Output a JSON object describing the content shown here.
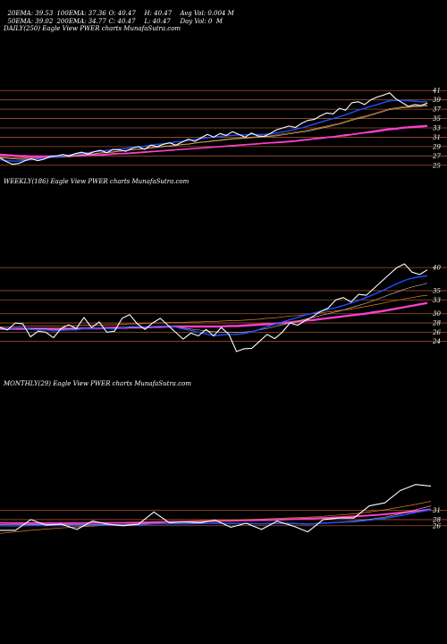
{
  "header": {
    "row1": [
      "20EMA: 39.53",
      "100EMA: 37.36",
      "O: 40.47",
      "H: 40.47",
      "Avg Vol: 0.004 M"
    ],
    "row2": [
      "50EMA: 39.02",
      "200EMA: 34.77",
      "C: 40.47",
      "L: 40.47",
      "Day Vol: 0  M"
    ]
  },
  "colors": {
    "background": "#000000",
    "gridline": "#a0522d",
    "price": "#ffffff",
    "ema_short": "#1f4fff",
    "ema_long": "#ff3fd0",
    "ema_mid": "#c8b090",
    "ema_orange": "#e08020"
  },
  "chart_data": [
    {
      "type": "line",
      "label": "DAILY(250) Eagle  View  PWER charts MunafaSutra.com",
      "ylim": [
        24,
        42
      ],
      "yticks": [
        41,
        39,
        37,
        35,
        33,
        31,
        29,
        27,
        25
      ],
      "series": [
        {
          "role": "price",
          "values": [
            26.6,
            25.8,
            25.2,
            25.4,
            26.0,
            26.4,
            26.0,
            26.3,
            26.9,
            27.0,
            27.3,
            27.0,
            27.5,
            27.8,
            27.4,
            27.9,
            28.2,
            27.7,
            28.4,
            28.3,
            28.0,
            28.6,
            29.0,
            28.4,
            29.3,
            29.0,
            29.5,
            29.8,
            29.3,
            30.0,
            30.6,
            30.1,
            30.9,
            31.6,
            31.0,
            31.8,
            31.4,
            32.2,
            31.6,
            31.0,
            31.9,
            31.3,
            31.2,
            31.8,
            32.6,
            33.0,
            33.4,
            33.1,
            34.0,
            34.6,
            34.8,
            35.6,
            36.2,
            36.0,
            37.2,
            36.8,
            38.4,
            38.6,
            38.0,
            39.0,
            39.6,
            40.0,
            40.5,
            39.2,
            38.4,
            37.6,
            38.0,
            37.8,
            38.3
          ]
        },
        {
          "role": "ema_short",
          "values": [
            26.2,
            26.0,
            25.9,
            25.9,
            26.1,
            26.2,
            26.3,
            26.5,
            26.7,
            26.8,
            27.0,
            27.2,
            27.4,
            27.5,
            27.7,
            27.9,
            28.0,
            28.2,
            28.3,
            28.5,
            28.6,
            28.8,
            29.0,
            29.1,
            29.3,
            29.5,
            29.6,
            29.8,
            30.0,
            30.1,
            30.3,
            30.5,
            30.7,
            30.9,
            31.0,
            31.2,
            31.3,
            31.4,
            31.5,
            31.5,
            31.6,
            31.6,
            31.6,
            31.7,
            31.9,
            32.1,
            32.4,
            32.7,
            33.0,
            33.4,
            33.8,
            34.2,
            34.6,
            35.0,
            35.4,
            35.8,
            36.3,
            36.8,
            37.2,
            37.6,
            38.0,
            38.4,
            38.8,
            38.9,
            38.9,
            38.8,
            38.7,
            38.6,
            38.6
          ]
        },
        {
          "role": "ema_mid",
          "values": [
            26.6,
            26.5,
            26.4,
            26.3,
            26.3,
            26.3,
            26.4,
            26.5,
            26.6,
            26.7,
            26.8,
            26.9,
            27.0,
            27.2,
            27.3,
            27.4,
            27.6,
            27.7,
            27.8,
            28.0,
            28.1,
            28.3,
            28.4,
            28.5,
            28.7,
            28.8,
            29.0,
            29.1,
            29.2,
            29.4,
            29.5,
            29.7,
            29.9,
            30.0,
            30.2,
            30.3,
            30.5,
            30.6,
            30.7,
            30.8,
            30.9,
            31.0,
            31.1,
            31.2,
            31.3,
            31.5,
            31.7,
            31.9,
            32.1,
            32.3,
            32.6,
            32.9,
            33.2,
            33.5,
            33.8,
            34.2,
            34.6,
            35.0,
            35.3,
            35.7,
            36.1,
            36.5,
            36.9,
            37.1,
            37.3,
            37.4,
            37.5,
            37.6,
            37.7
          ]
        },
        {
          "role": "ema_orange",
          "values": [
            26.8,
            26.7,
            26.6,
            26.5,
            26.5,
            26.5,
            26.5,
            26.6,
            26.7,
            26.8,
            26.9,
            27.0,
            27.1,
            27.3,
            27.4,
            27.5,
            27.7,
            27.8,
            27.9,
            28.1,
            28.2,
            28.3,
            28.5,
            28.6,
            28.8,
            28.9,
            29.1,
            29.2,
            29.3,
            29.5,
            29.6,
            29.8,
            30.0,
            30.1,
            30.3,
            30.4,
            30.6,
            30.7,
            30.8,
            30.9,
            31.0,
            31.1,
            31.2,
            31.3,
            31.5,
            31.7,
            31.9,
            32.1,
            32.3,
            32.5,
            32.8,
            33.1,
            33.4,
            33.7,
            34.0,
            34.4,
            34.8,
            35.2,
            35.5,
            35.9,
            36.3,
            36.7,
            37.1,
            37.3,
            37.5,
            37.6,
            37.7,
            37.8,
            37.9
          ]
        },
        {
          "role": "ema_long",
          "values": [
            27.2,
            27.1,
            27.0,
            26.9,
            26.8,
            26.8,
            26.8,
            26.8,
            26.8,
            26.8,
            26.9,
            26.9,
            27.0,
            27.0,
            27.1,
            27.2,
            27.2,
            27.3,
            27.4,
            27.5,
            27.5,
            27.6,
            27.7,
            27.8,
            27.9,
            28.0,
            28.1,
            28.2,
            28.3,
            28.4,
            28.5,
            28.6,
            28.7,
            28.8,
            28.9,
            29.0,
            29.1,
            29.2,
            29.3,
            29.4,
            29.5,
            29.6,
            29.7,
            29.8,
            29.9,
            30.0,
            30.1,
            30.2,
            30.4,
            30.5,
            30.7,
            30.8,
            31.0,
            31.1,
            31.3,
            31.5,
            31.6,
            31.8,
            32.0,
            32.2,
            32.4,
            32.6,
            32.8,
            32.9,
            33.1,
            33.2,
            33.3,
            33.4,
            33.5
          ]
        },
        {
          "role": "ema_long2",
          "values": [
            27.4,
            27.3,
            27.2,
            27.1,
            27.1,
            27.0,
            27.0,
            27.0,
            27.0,
            27.0,
            27.0,
            27.1,
            27.1,
            27.2,
            27.2,
            27.3,
            27.3,
            27.4,
            27.5,
            27.5,
            27.6,
            27.7,
            27.8,
            27.9,
            28.0,
            28.0,
            28.1,
            28.2,
            28.3,
            28.4,
            28.5,
            28.6,
            28.7,
            28.8,
            28.9,
            29.0,
            29.1,
            29.2,
            29.3,
            29.4,
            29.5,
            29.6,
            29.7,
            29.8,
            29.8,
            29.9,
            30.0,
            30.1,
            30.3,
            30.4,
            30.6,
            30.7,
            30.9,
            31.0,
            31.2,
            31.3,
            31.5,
            31.7,
            31.9,
            32.0,
            32.2,
            32.4,
            32.6,
            32.7,
            32.9,
            33.0,
            33.1,
            33.2,
            33.3
          ]
        }
      ]
    },
    {
      "type": "line",
      "label": "WEEKLY(186) Eagle  View  PWER charts MunafaSutra.com",
      "ylim": [
        22,
        41
      ],
      "yticks": [
        40,
        35,
        33,
        30,
        28,
        26,
        24
      ],
      "series": [
        {
          "role": "price",
          "values": [
            27.0,
            26.5,
            28.0,
            27.8,
            25.0,
            26.2,
            26.0,
            24.8,
            26.8,
            27.6,
            26.8,
            29.2,
            27.0,
            28.2,
            26.0,
            26.2,
            29.0,
            29.8,
            27.8,
            26.6,
            28.0,
            29.0,
            27.5,
            26.0,
            24.5,
            25.8,
            25.2,
            26.6,
            25.2,
            27.0,
            25.5,
            21.8,
            22.4,
            22.5,
            24.0,
            25.5,
            24.6,
            26.0,
            28.0,
            27.5,
            28.5,
            29.4,
            30.5,
            31.2,
            33.0,
            33.5,
            32.5,
            34.2,
            34.0,
            35.5,
            37.0,
            38.5,
            40.0,
            40.8,
            39.0,
            38.5,
            39.5
          ]
        },
        {
          "role": "ema_short",
          "values": [
            27.0,
            26.8,
            26.9,
            27.0,
            26.6,
            26.5,
            26.5,
            26.3,
            26.4,
            26.5,
            26.5,
            26.8,
            26.8,
            26.9,
            26.8,
            26.7,
            26.9,
            27.2,
            27.2,
            27.1,
            27.2,
            27.3,
            27.3,
            27.1,
            26.7,
            26.4,
            26.0,
            25.6,
            25.2,
            25.4,
            25.5,
            25.5,
            25.7,
            26.1,
            26.6,
            27.2,
            27.7,
            28.2,
            28.7,
            29.2,
            29.7,
            30.1,
            30.5,
            30.9,
            31.3,
            31.8,
            32.3,
            32.9,
            33.5,
            34.2,
            34.9,
            35.7,
            36.5,
            37.2,
            37.7,
            38.0,
            38.2
          ]
        },
        {
          "role": "ema_mid",
          "values": [
            26.9,
            26.8,
            26.8,
            26.9,
            26.8,
            26.7,
            26.7,
            26.6,
            26.6,
            26.7,
            26.7,
            26.8,
            26.8,
            26.8,
            26.8,
            26.8,
            26.9,
            27.0,
            27.0,
            27.0,
            27.1,
            27.2,
            27.2,
            27.1,
            26.9,
            26.7,
            26.5,
            26.3,
            26.1,
            26.0,
            26.0,
            25.9,
            26.0,
            26.2,
            26.5,
            26.8,
            27.2,
            27.6,
            28.0,
            28.4,
            28.8,
            29.2,
            29.6,
            30.0,
            30.4,
            30.8,
            31.3,
            31.8,
            32.3,
            32.9,
            33.5,
            34.1,
            34.7,
            35.3,
            35.8,
            36.2,
            36.6
          ]
        },
        {
          "role": "ema_orange",
          "values": [
            27.2,
            27.2,
            27.2,
            27.3,
            27.3,
            27.3,
            27.3,
            27.3,
            27.3,
            27.4,
            27.4,
            27.5,
            27.5,
            27.5,
            27.6,
            27.6,
            27.7,
            27.8,
            27.8,
            27.9,
            28.0,
            28.0,
            28.1,
            28.1,
            28.1,
            28.2,
            28.2,
            28.3,
            28.3,
            28.4,
            28.5,
            28.5,
            28.6,
            28.7,
            28.8,
            29.0,
            29.1,
            29.3,
            29.5,
            29.6,
            29.8,
            30.0,
            30.2,
            30.4,
            30.6,
            30.8,
            31.0,
            31.3,
            31.6,
            31.9,
            32.2,
            32.6,
            32.9,
            33.2,
            33.5,
            33.8,
            34.0
          ]
        },
        {
          "role": "ema_long",
          "values": [
            26.8,
            26.8,
            26.8,
            26.8,
            26.8,
            26.8,
            26.8,
            26.8,
            26.8,
            26.8,
            26.8,
            26.9,
            26.9,
            26.9,
            27.0,
            27.0,
            27.0,
            27.1,
            27.1,
            27.1,
            27.2,
            27.2,
            27.3,
            27.3,
            27.3,
            27.3,
            27.3,
            27.3,
            27.3,
            27.3,
            27.4,
            27.4,
            27.5,
            27.6,
            27.7,
            27.8,
            27.9,
            28.1,
            28.2,
            28.4,
            28.6,
            28.7,
            28.9,
            29.1,
            29.3,
            29.5,
            29.7,
            29.9,
            30.1,
            30.4,
            30.6,
            30.9,
            31.2,
            31.5,
            31.8,
            32.1,
            32.4
          ]
        },
        {
          "role": "ema_long2",
          "values": [
            26.6,
            26.6,
            26.6,
            26.6,
            26.6,
            26.6,
            26.6,
            26.6,
            26.6,
            26.6,
            26.6,
            26.7,
            26.7,
            26.7,
            26.8,
            26.8,
            26.8,
            26.9,
            26.9,
            26.9,
            27.0,
            27.0,
            27.1,
            27.1,
            27.1,
            27.1,
            27.1,
            27.1,
            27.1,
            27.1,
            27.2,
            27.2,
            27.3,
            27.4,
            27.5,
            27.6,
            27.7,
            27.9,
            28.0,
            28.2,
            28.4,
            28.5,
            28.7,
            28.9,
            29.1,
            29.3,
            29.5,
            29.7,
            29.9,
            30.2,
            30.4,
            30.7,
            31.0,
            31.3,
            31.6,
            31.9,
            32.2
          ]
        }
      ]
    },
    {
      "type": "line",
      "label": "MONTHLY(29) Eagle  View  PWER charts MunafaSutra.com",
      "ylim": [
        23,
        40
      ],
      "yticks": [
        31,
        28,
        26
      ],
      "series": [
        {
          "role": "price",
          "values": [
            24.5,
            24.5,
            28.0,
            26.2,
            26.5,
            24.8,
            27.5,
            26.5,
            26.0,
            26.5,
            30.5,
            27.0,
            27.2,
            27.0,
            27.8,
            25.5,
            26.8,
            24.8,
            27.5,
            26.0,
            24.0,
            28.0,
            28.5,
            28.5,
            32.5,
            33.5,
            37.5,
            39.5,
            39.0
          ]
        },
        {
          "role": "ema_short",
          "values": [
            26.0,
            25.9,
            26.1,
            26.1,
            26.1,
            26.0,
            26.2,
            26.2,
            26.2,
            26.2,
            26.6,
            26.6,
            26.6,
            26.7,
            26.8,
            26.7,
            26.7,
            26.6,
            26.7,
            26.7,
            26.5,
            26.8,
            27.1,
            27.3,
            27.8,
            28.4,
            29.3,
            30.3,
            31.2
          ]
        },
        {
          "role": "ema_mid",
          "values": [
            26.4,
            26.3,
            26.4,
            26.4,
            26.4,
            26.3,
            26.4,
            26.4,
            26.4,
            26.4,
            26.7,
            26.7,
            26.7,
            26.8,
            26.9,
            26.8,
            26.8,
            26.7,
            26.8,
            26.8,
            26.6,
            26.9,
            27.2,
            27.5,
            28.1,
            28.8,
            29.9,
            31.2,
            32.5
          ]
        },
        {
          "role": "ema_orange",
          "values": [
            23.5,
            24.0,
            24.5,
            24.9,
            25.3,
            25.6,
            25.9,
            26.2,
            26.4,
            26.6,
            26.9,
            27.1,
            27.3,
            27.5,
            27.7,
            27.8,
            28.0,
            28.2,
            28.4,
            28.6,
            28.8,
            29.1,
            29.5,
            29.9,
            30.5,
            31.2,
            32.1,
            33.0,
            34.0
          ]
        },
        {
          "role": "ema_long",
          "values": [
            27.0,
            26.9,
            26.9,
            26.9,
            26.9,
            26.9,
            27.0,
            27.0,
            27.0,
            27.1,
            27.2,
            27.3,
            27.4,
            27.5,
            27.6,
            27.7,
            27.8,
            27.9,
            28.0,
            28.2,
            28.4,
            28.6,
            28.8,
            29.1,
            29.4,
            29.8,
            30.3,
            30.8,
            31.4
          ]
        },
        {
          "role": "ema_long2",
          "values": [
            26.8,
            26.7,
            26.7,
            26.7,
            26.7,
            26.7,
            26.8,
            26.8,
            26.8,
            26.9,
            27.0,
            27.1,
            27.2,
            27.3,
            27.4,
            27.5,
            27.6,
            27.7,
            27.8,
            28.0,
            28.2,
            28.4,
            28.6,
            28.9,
            29.2,
            29.6,
            30.1,
            30.6,
            31.2
          ]
        }
      ]
    }
  ]
}
